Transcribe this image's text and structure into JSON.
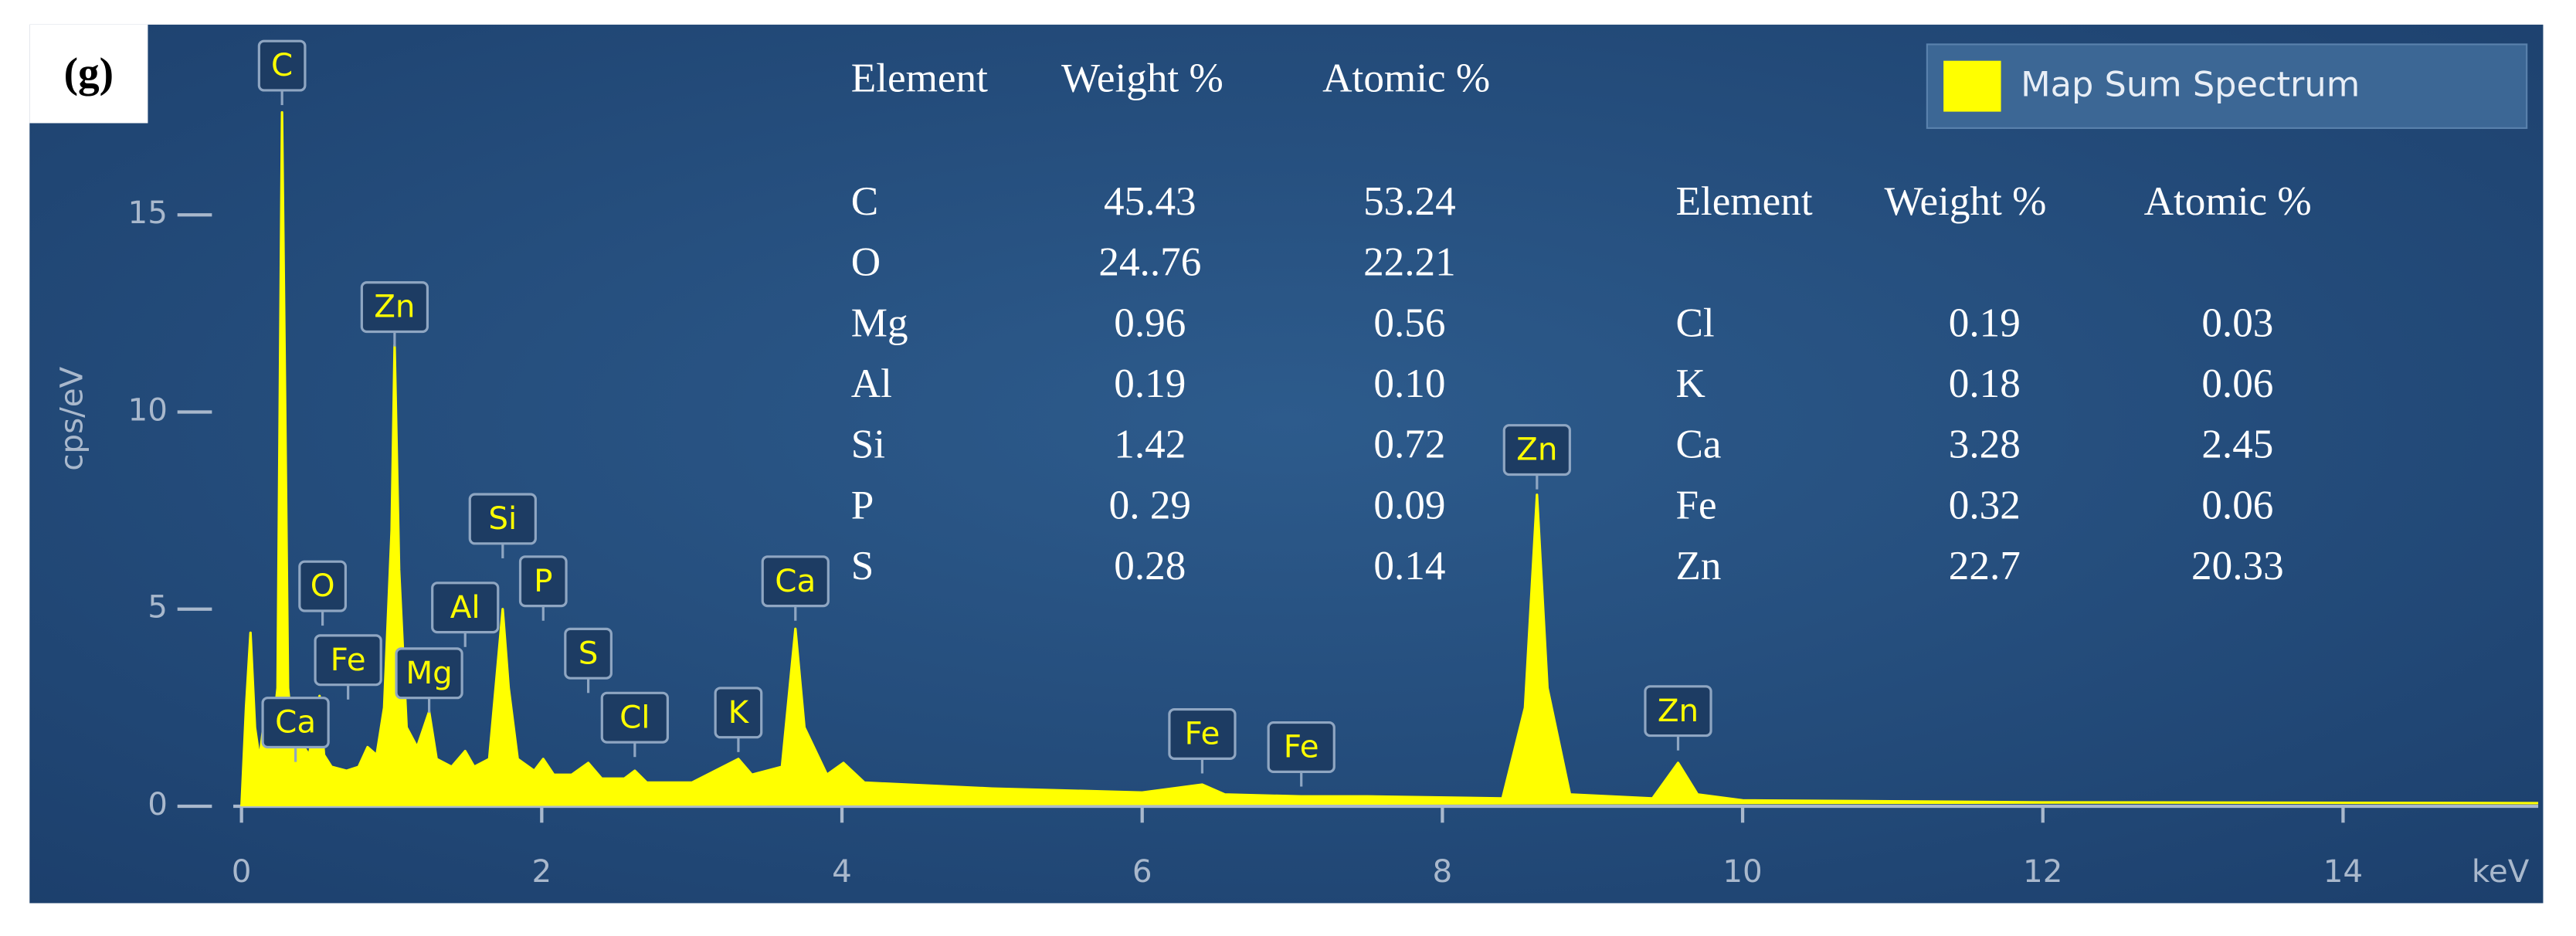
{
  "chart_data": {
    "type": "area",
    "panel_label": "(g)",
    "x_label": "keV",
    "y_label": "cps/eV",
    "xlim": [
      0,
      15.3
    ],
    "ylim": [
      0,
      19.7
    ],
    "xticks": [
      0,
      2,
      4,
      6,
      8,
      10,
      12,
      14
    ],
    "yticks": [
      0,
      5,
      10,
      15
    ],
    "legend": "upper right",
    "x": [
      0,
      0.03,
      0.06,
      0.09,
      0.12,
      0.16,
      0.2,
      0.24,
      0.27,
      0.29,
      0.31,
      0.35,
      0.4,
      0.45,
      0.52,
      0.55,
      0.6,
      0.7,
      0.78,
      0.84,
      0.9,
      0.95,
      1.0,
      1.02,
      1.05,
      1.1,
      1.17,
      1.25,
      1.3,
      1.4,
      1.49,
      1.55,
      1.65,
      1.74,
      1.78,
      1.84,
      1.95,
      2.01,
      2.08,
      2.2,
      2.31,
      2.4,
      2.55,
      2.62,
      2.7,
      3.0,
      3.31,
      3.4,
      3.6,
      3.69,
      3.75,
      3.9,
      4.01,
      4.15,
      5.0,
      6.0,
      6.4,
      6.55,
      7.06,
      7.5,
      8.4,
      8.55,
      8.63,
      8.7,
      8.85,
      9.4,
      9.57,
      9.7,
      10,
      12,
      15.3
    ],
    "series": [
      {
        "name": "Map Sum Spectrum",
        "color": "#ffff00",
        "values": [
          0,
          2.5,
          4.4,
          2.0,
          1.2,
          2.5,
          1.6,
          3.0,
          17.6,
          10.5,
          3.0,
          1.5,
          1.6,
          1.3,
          2.8,
          1.3,
          1.0,
          0.9,
          1.0,
          1.5,
          1.3,
          2.5,
          7.0,
          11.7,
          6.0,
          2.0,
          1.5,
          2.4,
          1.2,
          1.0,
          1.4,
          1.0,
          1.2,
          5.0,
          3.0,
          1.2,
          0.9,
          1.2,
          0.8,
          0.8,
          1.1,
          0.7,
          0.7,
          0.9,
          0.6,
          0.6,
          1.2,
          0.8,
          1.0,
          4.5,
          2.0,
          0.8,
          1.1,
          0.6,
          0.45,
          0.35,
          0.55,
          0.3,
          0.25,
          0.25,
          0.2,
          2.5,
          7.9,
          3.0,
          0.3,
          0.2,
          1.1,
          0.3,
          0.15,
          0.1,
          0.08
        ]
      }
    ],
    "peak_labels": [
      {
        "label": "C",
        "x": 0.27
      },
      {
        "label": "Zn",
        "x": 1.02
      },
      {
        "label": "O",
        "x": 0.54
      },
      {
        "label": "Fe",
        "x": 0.71
      },
      {
        "label": "Ca",
        "x": 0.36
      },
      {
        "label": "Mg",
        "x": 1.25
      },
      {
        "label": "Al",
        "x": 1.49
      },
      {
        "label": "Si",
        "x": 1.74
      },
      {
        "label": "P",
        "x": 2.01
      },
      {
        "label": "S",
        "x": 2.31
      },
      {
        "label": "Cl",
        "x": 2.62
      },
      {
        "label": "K",
        "x": 3.31
      },
      {
        "label": "Ca",
        "x": 3.69
      },
      {
        "label": "Fe",
        "x": 6.4
      },
      {
        "label": "Fe",
        "x": 7.06
      },
      {
        "label": "Zn",
        "x": 8.63
      },
      {
        "label": "Zn",
        "x": 9.57
      }
    ],
    "tables": [
      {
        "columns": [
          "Element",
          "Weight %",
          "Atomic %"
        ],
        "rows": [
          [
            "C",
            "45.43",
            "53.24"
          ],
          [
            "O",
            "24..76",
            "22.21"
          ],
          [
            "Mg",
            "0.96",
            "0.56"
          ],
          [
            "Al",
            "0.19",
            "0.10"
          ],
          [
            "Si",
            "1.42",
            "0.72"
          ],
          [
            "P",
            "0. 29",
            "0.09"
          ],
          [
            "S",
            "0.28",
            "0.14"
          ]
        ]
      },
      {
        "columns": [
          "Element",
          "Weight %",
          "Atomic %"
        ],
        "rows": [
          [
            "Cl",
            "0.19",
            "0.03"
          ],
          [
            "K",
            "0.18",
            "0.06"
          ],
          [
            "Ca",
            "3.28",
            "2.45"
          ],
          [
            "Fe",
            "0.32",
            "0.06"
          ],
          [
            "Zn",
            "22.7",
            "20.33"
          ]
        ]
      }
    ]
  }
}
